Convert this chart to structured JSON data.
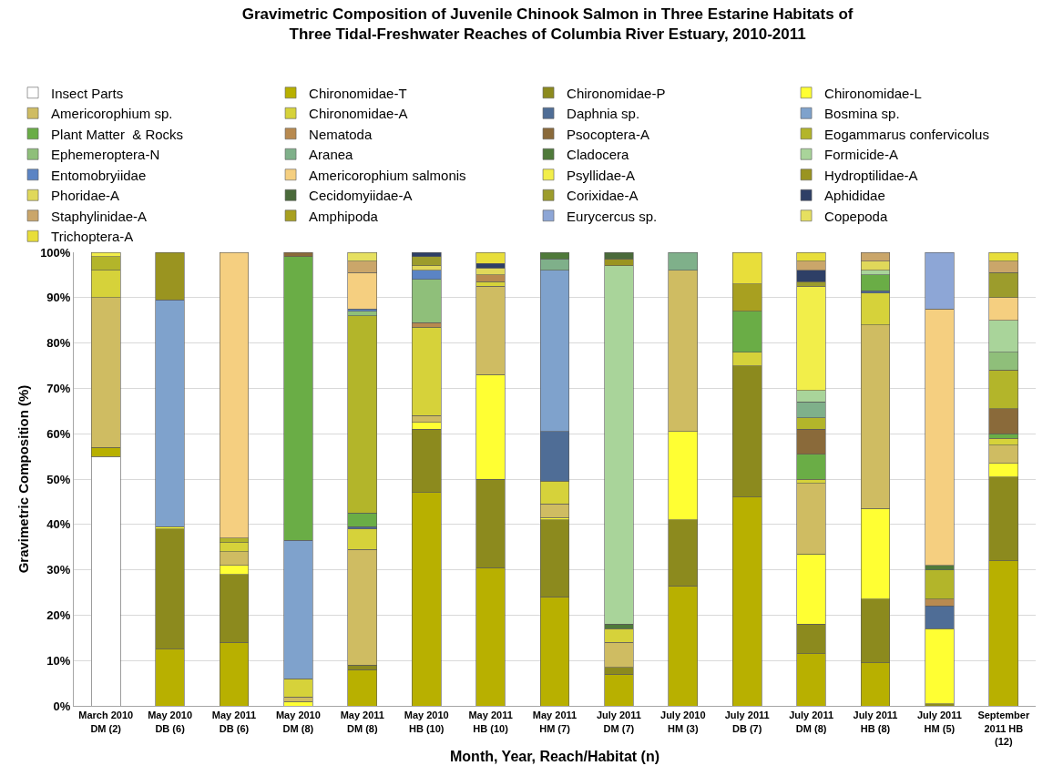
{
  "chart_data": {
    "type": "bar",
    "title": "Gravimetric Composition of Juvenile Chinook Salmon in Three Estarine Habitats of Three Tidal-Freshwater Reaches of Columbia River Estuary, 2010-2011",
    "xlabel": "Month, Year, Reach/Habitat (n)",
    "ylabel": "Gravimetric Composition (%)",
    "categories": [
      "March 2010 DM (2)",
      "May 2010 DB (6)",
      "May 2011 DB (6)",
      "May 2010 DM (8)",
      "May 2011 DM (8)",
      "May 2010 HB (10)",
      "May 2011 HB (10)",
      "May 2011 HM (7)",
      "July 2011 DM (7)",
      "July 2010 HM (3)",
      "July 2011 DB (7)",
      "July 2011 DM (8)",
      "July 2011 HB (8)",
      "July 2011 HM (5)",
      "September 2011 HB (12)"
    ],
    "stacked": true,
    "ylim": [
      0,
      100
    ],
    "yticks": [
      {
        "value": 0,
        "label": "0%"
      },
      {
        "value": 10,
        "label": "10%"
      },
      {
        "value": 20,
        "label": "20%"
      },
      {
        "value": 30,
        "label": "30%"
      },
      {
        "value": 40,
        "label": "40%"
      },
      {
        "value": 50,
        "label": "50%"
      },
      {
        "value": 60,
        "label": "60%"
      },
      {
        "value": 70,
        "label": "70%"
      },
      {
        "value": 80,
        "label": "80%"
      },
      {
        "value": 90,
        "label": "90%"
      },
      {
        "value": 100,
        "label": "100%"
      }
    ],
    "grid": "y",
    "legend": "top",
    "series": [
      {
        "name": "Insect Parts",
        "color": "#ffffff",
        "values": [
          55,
          null,
          null,
          null,
          null,
          null,
          null,
          null,
          null,
          null,
          null,
          null,
          null,
          null,
          null
        ]
      },
      {
        "name": "Chironomidae-T",
        "color": "#b8b000",
        "values": [
          2,
          12.5,
          14,
          null,
          8,
          47,
          30.5,
          24,
          7,
          26.5,
          46,
          11.5,
          9.5,
          null,
          32
        ]
      },
      {
        "name": "Chironomidae-P",
        "color": "#8c8a1e",
        "values": [
          null,
          26.5,
          15,
          null,
          1,
          14,
          19.5,
          17,
          1.5,
          14.5,
          29,
          6.5,
          14,
          0.5,
          18.5
        ]
      },
      {
        "name": "Chironomidae-L",
        "color": "#ffff33",
        "values": [
          null,
          0.5,
          2,
          1,
          null,
          1.5,
          23,
          0.5,
          null,
          19.5,
          null,
          15.5,
          20,
          16.5,
          3
        ]
      },
      {
        "name": "Americorophium sp.",
        "color": "#cfbc62",
        "values": [
          33,
          null,
          3,
          1,
          25.5,
          1.5,
          19.5,
          3,
          5.5,
          35.5,
          null,
          15.5,
          40.5,
          null,
          4
        ]
      },
      {
        "name": "Chironomidae-A",
        "color": "#d6d23a",
        "values": [
          6,
          null,
          2,
          4,
          4.5,
          19.5,
          1,
          5,
          3,
          null,
          3,
          1,
          7,
          null,
          1.5
        ]
      },
      {
        "name": "Daphnia sp.",
        "color": "#4f6d96",
        "values": [
          null,
          null,
          null,
          null,
          0.5,
          null,
          null,
          11,
          null,
          null,
          null,
          null,
          0.5,
          5,
          null
        ]
      },
      {
        "name": "Bosmina sp.",
        "color": "#7fa2cc",
        "values": [
          null,
          50,
          null,
          30.5,
          null,
          null,
          null,
          35.5,
          null,
          null,
          null,
          null,
          null,
          null,
          null
        ]
      },
      {
        "name": "Plant Matter  & Rocks",
        "color": "#6aad46",
        "values": [
          null,
          null,
          null,
          62.5,
          3,
          null,
          null,
          null,
          null,
          null,
          9,
          5.5,
          3.5,
          null,
          1
        ]
      },
      {
        "name": "Nematoda",
        "color": "#b88a50",
        "values": [
          null,
          null,
          null,
          null,
          null,
          1,
          1.5,
          null,
          null,
          null,
          null,
          null,
          null,
          1.5,
          null
        ]
      },
      {
        "name": "Psocoptera-A",
        "color": "#8a6a3a",
        "values": [
          null,
          null,
          null,
          1,
          null,
          null,
          null,
          null,
          null,
          null,
          null,
          5.5,
          null,
          null,
          5.5
        ]
      },
      {
        "name": "Eogammarus confervicolus",
        "color": "#b3b52a",
        "values": [
          3,
          null,
          1,
          null,
          43.5,
          null,
          null,
          null,
          null,
          null,
          null,
          2.5,
          null,
          6.5,
          8.5
        ]
      },
      {
        "name": "Ephemeroptera-N",
        "color": "#8fbf7a",
        "values": [
          null,
          null,
          null,
          null,
          1,
          9.5,
          null,
          null,
          null,
          null,
          null,
          null,
          null,
          null,
          4
        ]
      },
      {
        "name": "Aranea",
        "color": "#7fb08a",
        "values": [
          null,
          null,
          null,
          null,
          null,
          null,
          null,
          2.5,
          null,
          4,
          null,
          3.5,
          null,
          null,
          null
        ]
      },
      {
        "name": "Cladocera",
        "color": "#4f7a3a",
        "values": [
          null,
          null,
          null,
          null,
          null,
          null,
          null,
          1.5,
          1,
          null,
          null,
          null,
          null,
          1,
          null
        ]
      },
      {
        "name": "Formicide-A",
        "color": "#a9d49a",
        "values": [
          null,
          null,
          null,
          null,
          null,
          null,
          null,
          null,
          79,
          null,
          null,
          2.5,
          1,
          null,
          7
        ]
      },
      {
        "name": "Entomobryiidae",
        "color": "#5b84c4",
        "values": [
          null,
          null,
          null,
          null,
          0.5,
          2,
          null,
          null,
          null,
          null,
          null,
          null,
          null,
          null,
          null
        ]
      },
      {
        "name": "Americorophium salmonis",
        "color": "#f5cf80",
        "values": [
          null,
          null,
          63,
          null,
          8,
          null,
          null,
          null,
          null,
          null,
          null,
          null,
          null,
          56.5,
          5
        ]
      },
      {
        "name": "Psyllidae-A",
        "color": "#f2ee4a",
        "values": [
          1,
          null,
          null,
          null,
          null,
          null,
          null,
          null,
          null,
          null,
          null,
          23,
          null,
          null,
          null
        ]
      },
      {
        "name": "Hydroptilidae-A",
        "color": "#9a9420",
        "values": [
          null,
          10.5,
          null,
          null,
          null,
          null,
          null,
          null,
          1.5,
          null,
          null,
          null,
          null,
          null,
          null
        ]
      },
      {
        "name": "Phoridae-A",
        "color": "#e0d85a",
        "values": [
          null,
          null,
          null,
          null,
          null,
          1,
          1.5,
          null,
          null,
          null,
          null,
          null,
          2,
          null,
          null
        ]
      },
      {
        "name": "Cecidomyiidae-A",
        "color": "#4a6a3a",
        "values": [
          null,
          null,
          null,
          null,
          null,
          null,
          null,
          null,
          1.5,
          null,
          null,
          null,
          null,
          null,
          null
        ]
      },
      {
        "name": "Corixidae-A",
        "color": "#9c9c2c",
        "values": [
          null,
          null,
          null,
          null,
          null,
          2,
          null,
          null,
          null,
          null,
          null,
          1,
          null,
          null,
          5.5
        ]
      },
      {
        "name": "Aphididae",
        "color": "#2e3f66",
        "values": [
          null,
          null,
          null,
          null,
          null,
          1,
          1,
          null,
          null,
          null,
          null,
          2.5,
          null,
          null,
          null
        ]
      },
      {
        "name": "Staphylinidae-A",
        "color": "#caa66a",
        "values": [
          null,
          null,
          null,
          null,
          2.5,
          null,
          null,
          null,
          null,
          null,
          null,
          2,
          2,
          null,
          2.5
        ]
      },
      {
        "name": "Amphipoda",
        "color": "#a8a020",
        "values": [
          null,
          null,
          null,
          null,
          null,
          null,
          null,
          null,
          null,
          null,
          6,
          null,
          null,
          null,
          null
        ]
      },
      {
        "name": "Eurycercus sp.",
        "color": "#8da6d6",
        "values": [
          null,
          null,
          null,
          null,
          null,
          null,
          null,
          null,
          null,
          null,
          null,
          null,
          null,
          12.5,
          null
        ]
      },
      {
        "name": "Copepoda",
        "color": "#e6e060",
        "values": [
          null,
          null,
          null,
          null,
          2,
          null,
          null,
          null,
          null,
          null,
          null,
          null,
          null,
          null,
          null
        ]
      },
      {
        "name": "Trichoptera-A",
        "color": "#e8de3a",
        "values": [
          null,
          null,
          null,
          null,
          null,
          null,
          2.5,
          null,
          null,
          null,
          7,
          2,
          null,
          null,
          2
        ]
      }
    ]
  }
}
